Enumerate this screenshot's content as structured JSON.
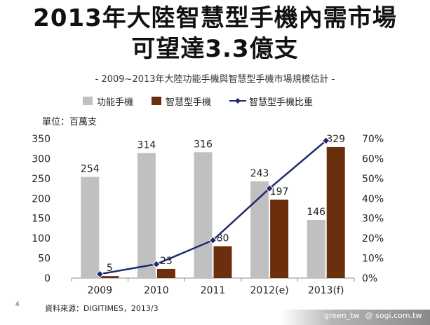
{
  "title_line1": "2013年大陸智慧型手機內需市場",
  "title_line2": "可望達3.3億支",
  "subtitle": "- 2009~2013年大陸功能手機與智慧型手機市場規模估計 -",
  "unit_label": "單位：百萬支",
  "source": "資料來源：DIGITIMES，2013/3",
  "page_number": "4",
  "credit_left": "green_tw",
  "credit_right": "@ sogi.com.tw",
  "colors": {
    "feature": "#c0c0c0",
    "smart": "#6b2f0e",
    "ratio_line": "#1f2a6b"
  },
  "chart_data": {
    "type": "bar",
    "categories": [
      "2009",
      "2010",
      "2011",
      "2012(e)",
      "2013(f)"
    ],
    "series": [
      {
        "name": "功能手機",
        "type": "bar",
        "axis": "left",
        "values": [
          254,
          314,
          316,
          243,
          146
        ],
        "labels": [
          "254",
          "314",
          "316",
          "243",
          "146"
        ]
      },
      {
        "name": "智慧型手機",
        "type": "bar",
        "axis": "left",
        "values": [
          5,
          23,
          80,
          197,
          329
        ],
        "labels": [
          "5",
          "23",
          "80",
          "197",
          "329"
        ]
      },
      {
        "name": "智慧型手機比重",
        "type": "line",
        "axis": "right",
        "values": [
          0.02,
          0.07,
          0.19,
          0.45,
          0.69
        ]
      }
    ],
    "ylim_left": [
      0,
      350
    ],
    "yticks_left": [
      "0",
      "50",
      "100",
      "150",
      "200",
      "250",
      "300",
      "350"
    ],
    "ylim_right": [
      0,
      0.7
    ],
    "yticks_right": [
      "0%",
      "10%",
      "20%",
      "30%",
      "40%",
      "50%",
      "60%",
      "70%"
    ],
    "legend_position": "top",
    "grid": false
  }
}
